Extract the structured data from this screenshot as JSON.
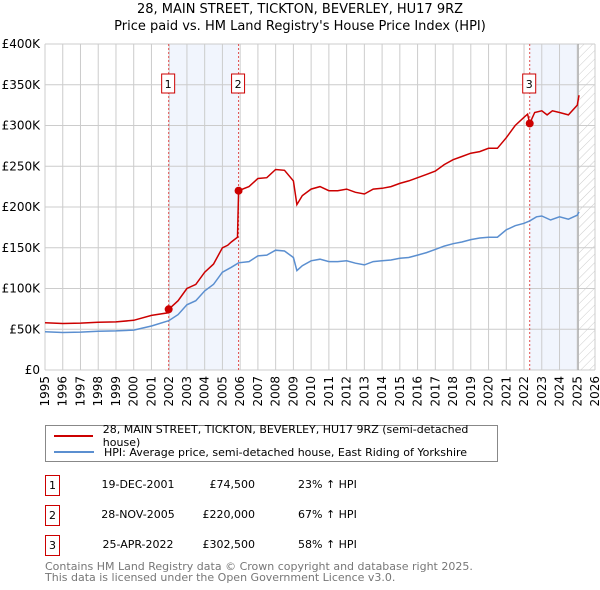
{
  "chart_data": {
    "type": "line",
    "title": "28, MAIN STREET, TICKTON, BEVERLEY, HU17 9RZ",
    "subtitle": "Price paid vs. HM Land Registry's House Price Index (HPI)",
    "xlim": [
      1995,
      2026
    ],
    "ylim": [
      0,
      400000
    ],
    "x_ticks": [
      "1995",
      "1996",
      "1997",
      "1998",
      "1999",
      "2000",
      "2001",
      "2002",
      "2003",
      "2004",
      "2005",
      "2006",
      "2007",
      "2008",
      "2009",
      "2010",
      "2011",
      "2012",
      "2013",
      "2014",
      "2015",
      "2016",
      "2017",
      "2018",
      "2019",
      "2020",
      "2021",
      "2022",
      "2023",
      "2024",
      "2025",
      "2026"
    ],
    "y_ticks": [
      {
        "v": 0,
        "label": "£0"
      },
      {
        "v": 50000,
        "label": "£50K"
      },
      {
        "v": 100000,
        "label": "£100K"
      },
      {
        "v": 150000,
        "label": "£150K"
      },
      {
        "v": 200000,
        "label": "£200K"
      },
      {
        "v": 250000,
        "label": "£250K"
      },
      {
        "v": 300000,
        "label": "£300K"
      },
      {
        "v": 350000,
        "label": "£350K"
      },
      {
        "v": 400000,
        "label": "£400K"
      }
    ],
    "grid": true,
    "series": [
      {
        "name": "28, MAIN STREET, TICKTON, BEVERLEY, HU17 9RZ (semi-detached house)",
        "color": "#cc0000",
        "x": [
          1995,
          1996,
          1997,
          1998,
          1999,
          2000,
          2001,
          2001.9,
          2001.97,
          2002.5,
          2003,
          2003.5,
          2004,
          2004.5,
          2005,
          2005.3,
          2005.5,
          2005.85,
          2005.91,
          2006.5,
          2007,
          2007.5,
          2008,
          2008.5,
          2009,
          2009.2,
          2009.5,
          2010,
          2010.5,
          2011,
          2011.5,
          2012,
          2012.5,
          2013,
          2013.5,
          2014,
          2014.5,
          2015,
          2015.5,
          2016,
          2016.5,
          2017,
          2017.5,
          2018,
          2018.5,
          2019,
          2019.5,
          2020,
          2020.5,
          2021,
          2021.5,
          2022,
          2022.2,
          2022.32,
          2022.6,
          2023,
          2023.3,
          2023.6,
          2024,
          2024.5,
          2025,
          2025.1
        ],
        "y": [
          58000,
          57000,
          57500,
          58500,
          59000,
          61000,
          67000,
          70000,
          74500,
          85000,
          100000,
          105000,
          120000,
          130000,
          150000,
          153000,
          157000,
          163000,
          220000,
          225000,
          235000,
          236000,
          246000,
          245000,
          232000,
          203000,
          214000,
          222000,
          225000,
          220000,
          220000,
          222000,
          218000,
          216000,
          222000,
          223000,
          225000,
          229000,
          232000,
          236000,
          240000,
          244000,
          252000,
          258000,
          262000,
          266000,
          268000,
          272000,
          272000,
          285000,
          300000,
          310000,
          314000,
          302500,
          316000,
          318000,
          313000,
          318000,
          316000,
          313000,
          325000,
          337000
        ]
      },
      {
        "name": "HPI: Average price, semi-detached house, East Riding of Yorkshire",
        "color": "#5b8fd0",
        "x": [
          1995,
          1996,
          1997,
          1998,
          1999,
          2000,
          2001,
          2001.97,
          2002.5,
          2003,
          2003.5,
          2004,
          2004.5,
          2005,
          2005.5,
          2005.91,
          2006.5,
          2007,
          2007.5,
          2008,
          2008.5,
          2009,
          2009.2,
          2009.5,
          2010,
          2010.5,
          2011,
          2011.5,
          2012,
          2012.5,
          2013,
          2013.5,
          2014,
          2014.5,
          2015,
          2015.5,
          2016,
          2016.5,
          2017,
          2017.5,
          2018,
          2018.5,
          2019,
          2019.5,
          2020,
          2020.5,
          2021,
          2021.5,
          2022,
          2022.32,
          2022.7,
          2023,
          2023.5,
          2024,
          2024.5,
          2025,
          2025.1
        ],
        "y": [
          47000,
          46000,
          46500,
          47500,
          48000,
          49000,
          54000,
          60500,
          68000,
          80000,
          85000,
          97000,
          105000,
          120000,
          126000,
          131500,
          133000,
          140000,
          141000,
          147000,
          146000,
          138000,
          122000,
          128000,
          134000,
          136000,
          133000,
          133000,
          134000,
          131000,
          129000,
          133000,
          134000,
          135000,
          137000,
          138000,
          141000,
          144000,
          148000,
          152000,
          155000,
          157000,
          160000,
          162000,
          163000,
          163000,
          172000,
          177000,
          180000,
          183000,
          188000,
          189000,
          184000,
          188000,
          185000,
          190000,
          194000
        ]
      }
    ],
    "sales": [
      {
        "id": "1",
        "x": 2001.97,
        "y": 74500
      },
      {
        "id": "2",
        "x": 2005.91,
        "y": 220000
      },
      {
        "id": "3",
        "x": 2022.32,
        "y": 302500
      }
    ],
    "shaded_ranges": [
      [
        2001.97,
        2005.91
      ],
      [
        2022.32,
        2025.0
      ]
    ],
    "hatched_range": [
      2025.1,
      2026
    ]
  },
  "legend": {
    "property": "28, MAIN STREET, TICKTON, BEVERLEY, HU17 9RZ (semi-detached house)",
    "hpi": "HPI: Average price, semi-detached house, East Riding of Yorkshire"
  },
  "transactions": [
    {
      "num": "1",
      "date": "19-DEC-2001",
      "price": "£74,500",
      "hpi": "23% ↑ HPI"
    },
    {
      "num": "2",
      "date": "28-NOV-2005",
      "price": "£220,000",
      "hpi": "67% ↑ HPI"
    },
    {
      "num": "3",
      "date": "25-APR-2022",
      "price": "£302,500",
      "hpi": "58% ↑ HPI"
    }
  ],
  "footer": {
    "line1": "Contains HM Land Registry data © Crown copyright and database right 2025.",
    "line2": "This data is licensed under the Open Government Licence v3.0."
  }
}
